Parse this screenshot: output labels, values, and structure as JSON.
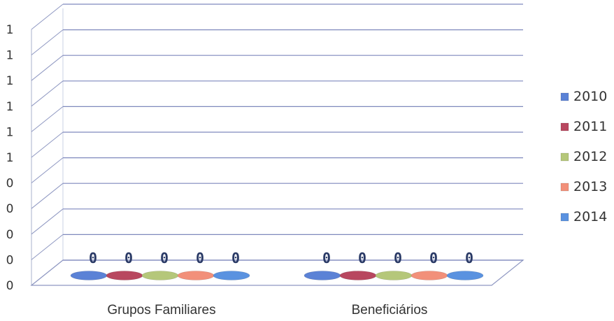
{
  "chart_data": {
    "type": "bar",
    "title": "",
    "xlabel": "",
    "ylabel": "",
    "categories": [
      "Grupos Familiares",
      "Beneficiários"
    ],
    "y_tick_labels": [
      "0",
      "0",
      "0",
      "0",
      "0",
      "1",
      "1",
      "1",
      "1",
      "1",
      "1"
    ],
    "grid": true,
    "legend_position": "right",
    "series": [
      {
        "name": "2010",
        "values": [
          0,
          0
        ],
        "color": "#5b82d6",
        "labels": [
          "0",
          "0"
        ]
      },
      {
        "name": "2011",
        "values": [
          0,
          0
        ],
        "color": "#b8475f",
        "labels": [
          "0",
          "0"
        ]
      },
      {
        "name": "2012",
        "values": [
          0,
          0
        ],
        "color": "#b5c77a",
        "labels": [
          "0",
          "0"
        ]
      },
      {
        "name": "2013",
        "values": [
          0,
          0
        ],
        "color": "#f2907a",
        "labels": [
          "0",
          "0"
        ]
      },
      {
        "name": "2014",
        "values": [
          0,
          0
        ],
        "color": "#5a92e0",
        "labels": [
          "0",
          "0"
        ]
      }
    ]
  }
}
